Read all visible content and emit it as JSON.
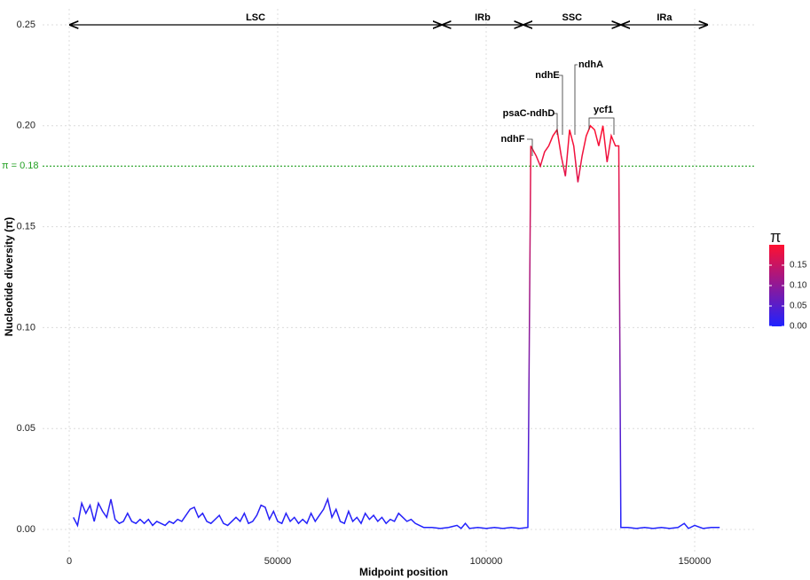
{
  "chart_data": {
    "type": "line",
    "x_label": "Midpoint position",
    "y_label": "Nucleotide diversity (π)",
    "xlim": [
      -6383,
      164255
    ],
    "ylim": [
      -0.0123,
      0.2579
    ],
    "xticks": [
      0,
      50000,
      100000,
      150000
    ],
    "yticks": [
      {
        "value": 0,
        "label": "0.00"
      },
      {
        "value": 0.05,
        "label": "0.05"
      },
      {
        "value": 0.1,
        "label": "0.10"
      },
      {
        "value": 0.15,
        "label": "0.15"
      },
      {
        "value": 0.2,
        "label": "0.20"
      },
      {
        "value": 0.25,
        "label": "0.25"
      }
    ],
    "grid": true,
    "x": [
      1000,
      2000,
      3000,
      4000,
      5000,
      6000,
      7000,
      8000,
      9000,
      10000,
      11000,
      12000,
      13000,
      14000,
      15000,
      16000,
      17000,
      18000,
      19000,
      20000,
      21000,
      22000,
      23000,
      24000,
      25000,
      26000,
      27000,
      28000,
      29000,
      30000,
      31000,
      32000,
      33000,
      34000,
      35000,
      36000,
      37000,
      38000,
      39000,
      40000,
      41000,
      42000,
      43000,
      44000,
      45000,
      46000,
      47000,
      48000,
      49000,
      50000,
      51000,
      52000,
      53000,
      54000,
      55000,
      56000,
      57000,
      58000,
      59000,
      60000,
      61000,
      62000,
      63000,
      64000,
      65000,
      66000,
      67000,
      68000,
      69000,
      70000,
      71000,
      72000,
      73000,
      74000,
      75000,
      76000,
      77000,
      78000,
      79000,
      80000,
      81000,
      82000,
      83000,
      84000,
      85000,
      87000,
      89000,
      91000,
      93000,
      94000,
      95000,
      96000,
      98000,
      100000,
      102000,
      104000,
      106000,
      108000,
      110000,
      110700,
      112000,
      113000,
      114000,
      115000,
      116000,
      117000,
      118000,
      119000,
      120000,
      121000,
      122000,
      123000,
      124000,
      125000,
      126000,
      127000,
      128000,
      129000,
      130000,
      131000,
      131800,
      132300,
      134000,
      136000,
      138000,
      140000,
      142000,
      144000,
      146000,
      147500,
      148500,
      150000,
      152000,
      154000,
      156000
    ],
    "series": [
      {
        "name": "π",
        "values": [
          0.006,
          0.002,
          0.013,
          0.008,
          0.012,
          0.004,
          0.013,
          0.009,
          0.006,
          0.015,
          0.005,
          0.003,
          0.004,
          0.008,
          0.004,
          0.003,
          0.005,
          0.003,
          0.005,
          0.002,
          0.004,
          0.003,
          0.002,
          0.004,
          0.003,
          0.005,
          0.004,
          0.007,
          0.01,
          0.011,
          0.006,
          0.008,
          0.004,
          0.003,
          0.005,
          0.007,
          0.003,
          0.002,
          0.004,
          0.006,
          0.004,
          0.008,
          0.003,
          0.004,
          0.007,
          0.012,
          0.011,
          0.005,
          0.009,
          0.004,
          0.003,
          0.008,
          0.004,
          0.006,
          0.003,
          0.005,
          0.003,
          0.008,
          0.004,
          0.007,
          0.01,
          0.015,
          0.006,
          0.01,
          0.004,
          0.003,
          0.009,
          0.004,
          0.006,
          0.003,
          0.008,
          0.005,
          0.007,
          0.004,
          0.006,
          0.003,
          0.005,
          0.004,
          0.008,
          0.006,
          0.004,
          0.005,
          0.003,
          0.002,
          0.001,
          0.001,
          0.0005,
          0.001,
          0.002,
          0.0005,
          0.003,
          0.0005,
          0.001,
          0.0005,
          0.001,
          0.0005,
          0.001,
          0.0005,
          0.001,
          0.19,
          0.185,
          0.18,
          0.187,
          0.19,
          0.195,
          0.198,
          0.185,
          0.175,
          0.198,
          0.19,
          0.172,
          0.185,
          0.195,
          0.2,
          0.198,
          0.19,
          0.2,
          0.182,
          0.195,
          0.19,
          0.19,
          0.001,
          0.001,
          0.0005,
          0.001,
          0.0005,
          0.001,
          0.0005,
          0.001,
          0.003,
          0.0005,
          0.002,
          0.0005,
          0.001,
          0.001
        ]
      }
    ],
    "color_scale": {
      "title": "π",
      "low": "#1f22ff",
      "high": "#ff1030",
      "limits": [
        0,
        0.2
      ],
      "ticks": [
        {
          "value": 0,
          "label": "0.00"
        },
        {
          "value": 0.05,
          "label": "0.05"
        },
        {
          "value": 0.1,
          "label": "0.10"
        },
        {
          "value": 0.15,
          "label": "0.15"
        }
      ]
    },
    "threshold": {
      "value": 0.18,
      "label": "π = 0.18",
      "color": "#22a022"
    },
    "regions": [
      {
        "name": "LSC",
        "start": 0,
        "end": 89400
      },
      {
        "name": "IRb",
        "start": 89400,
        "end": 108900
      },
      {
        "name": "SSC",
        "start": 108900,
        "end": 132300
      },
      {
        "name": "IRa",
        "start": 132300,
        "end": 153200
      }
    ],
    "annotations": [
      "ndhF",
      "psaC-ndhD",
      "ndhE",
      "ndhA",
      "ycf1"
    ]
  }
}
